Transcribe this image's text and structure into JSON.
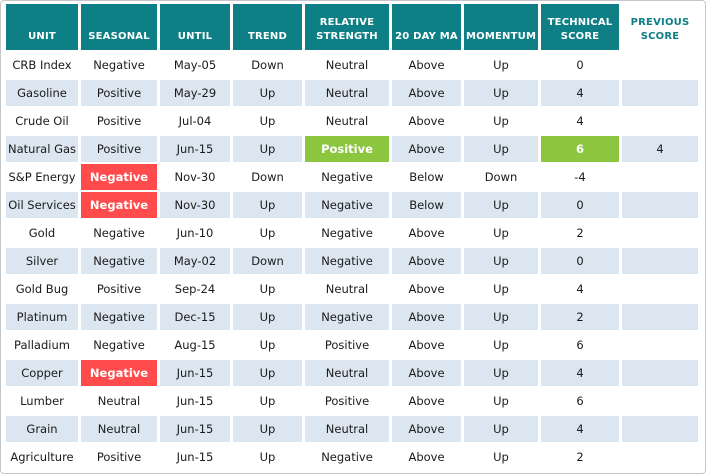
{
  "chart_data": {
    "type": "table",
    "columns": [
      {
        "key": "unit",
        "label": "UNIT"
      },
      {
        "key": "seasonal",
        "label": "SEASONAL"
      },
      {
        "key": "until",
        "label": "UNTIL"
      },
      {
        "key": "trend",
        "label": "TREND"
      },
      {
        "key": "relative-strength",
        "label": "RELATIVE STRENGTH"
      },
      {
        "key": "20-day-ma",
        "label": "20 DAY MA"
      },
      {
        "key": "momentum",
        "label": "MOMENTUM"
      },
      {
        "key": "technical-score",
        "label": "TECHNICAL SCORE"
      },
      {
        "key": "previous-score",
        "label": "PREVIOUS SCORE"
      }
    ],
    "rows": [
      {
        "cells": [
          {
            "t": "CRB Index"
          },
          {
            "t": "Negative"
          },
          {
            "t": "May-05"
          },
          {
            "t": "Down"
          },
          {
            "t": "Neutral"
          },
          {
            "t": "Above"
          },
          {
            "t": "Up"
          },
          {
            "t": "0"
          },
          {
            "t": ""
          }
        ]
      },
      {
        "cells": [
          {
            "t": "Gasoline"
          },
          {
            "t": "Positive"
          },
          {
            "t": "May-29"
          },
          {
            "t": "Up"
          },
          {
            "t": "Neutral"
          },
          {
            "t": "Above"
          },
          {
            "t": "Up"
          },
          {
            "t": "4"
          },
          {
            "t": ""
          }
        ]
      },
      {
        "cells": [
          {
            "t": "Crude Oil"
          },
          {
            "t": "Positive"
          },
          {
            "t": "Jul-04"
          },
          {
            "t": "Up"
          },
          {
            "t": "Neutral"
          },
          {
            "t": "Above"
          },
          {
            "t": "Up"
          },
          {
            "t": "4"
          },
          {
            "t": ""
          }
        ]
      },
      {
        "cells": [
          {
            "t": "Natural Gas"
          },
          {
            "t": "Positive"
          },
          {
            "t": "Jun-15"
          },
          {
            "t": "Up"
          },
          {
            "t": "Positive",
            "hl": "green"
          },
          {
            "t": "Above"
          },
          {
            "t": "Up"
          },
          {
            "t": "6",
            "hl": "green"
          },
          {
            "t": "4"
          }
        ]
      },
      {
        "cells": [
          {
            "t": "S&P Energy"
          },
          {
            "t": "Negative",
            "hl": "red"
          },
          {
            "t": "Nov-30"
          },
          {
            "t": "Down"
          },
          {
            "t": "Negative"
          },
          {
            "t": "Below"
          },
          {
            "t": "Down"
          },
          {
            "t": "-4"
          },
          {
            "t": ""
          }
        ]
      },
      {
        "cells": [
          {
            "t": "Oil Services"
          },
          {
            "t": "Negative",
            "hl": "red"
          },
          {
            "t": "Nov-30"
          },
          {
            "t": "Up"
          },
          {
            "t": "Negative"
          },
          {
            "t": "Below"
          },
          {
            "t": "Up"
          },
          {
            "t": "0"
          },
          {
            "t": ""
          }
        ]
      },
      {
        "cells": [
          {
            "t": "Gold"
          },
          {
            "t": "Negative"
          },
          {
            "t": "Jun-10"
          },
          {
            "t": "Up"
          },
          {
            "t": "Negative"
          },
          {
            "t": "Above"
          },
          {
            "t": "Up"
          },
          {
            "t": "2"
          },
          {
            "t": ""
          }
        ]
      },
      {
        "cells": [
          {
            "t": "Silver"
          },
          {
            "t": "Negative"
          },
          {
            "t": "May-02"
          },
          {
            "t": "Down"
          },
          {
            "t": "Negative"
          },
          {
            "t": "Above"
          },
          {
            "t": "Up"
          },
          {
            "t": "0"
          },
          {
            "t": ""
          }
        ]
      },
      {
        "cells": [
          {
            "t": "Gold Bug"
          },
          {
            "t": "Positive"
          },
          {
            "t": "Sep-24"
          },
          {
            "t": "Up"
          },
          {
            "t": "Neutral"
          },
          {
            "t": "Above"
          },
          {
            "t": "Up"
          },
          {
            "t": "4"
          },
          {
            "t": ""
          }
        ]
      },
      {
        "cells": [
          {
            "t": "Platinum"
          },
          {
            "t": "Negative"
          },
          {
            "t": "Dec-15"
          },
          {
            "t": "Up"
          },
          {
            "t": "Negative"
          },
          {
            "t": "Above"
          },
          {
            "t": "Up"
          },
          {
            "t": "2"
          },
          {
            "t": ""
          }
        ]
      },
      {
        "cells": [
          {
            "t": "Palladium"
          },
          {
            "t": "Negative"
          },
          {
            "t": "Aug-15"
          },
          {
            "t": "Up"
          },
          {
            "t": "Positive"
          },
          {
            "t": "Above"
          },
          {
            "t": "Up"
          },
          {
            "t": "6"
          },
          {
            "t": ""
          }
        ]
      },
      {
        "cells": [
          {
            "t": "Copper"
          },
          {
            "t": "Negative",
            "hl": "red"
          },
          {
            "t": "Jun-15"
          },
          {
            "t": "Up"
          },
          {
            "t": "Neutral"
          },
          {
            "t": "Above"
          },
          {
            "t": "Up"
          },
          {
            "t": "4"
          },
          {
            "t": ""
          }
        ]
      },
      {
        "cells": [
          {
            "t": "Lumber"
          },
          {
            "t": "Neutral"
          },
          {
            "t": "Jun-15"
          },
          {
            "t": "Up"
          },
          {
            "t": "Positive"
          },
          {
            "t": "Above"
          },
          {
            "t": "Up"
          },
          {
            "t": "6"
          },
          {
            "t": ""
          }
        ]
      },
      {
        "cells": [
          {
            "t": "Grain"
          },
          {
            "t": "Neutral"
          },
          {
            "t": "Jun-15"
          },
          {
            "t": "Up"
          },
          {
            "t": "Neutral"
          },
          {
            "t": "Above"
          },
          {
            "t": "Up"
          },
          {
            "t": "4"
          },
          {
            "t": ""
          }
        ]
      },
      {
        "cells": [
          {
            "t": "Agriculture"
          },
          {
            "t": "Positive"
          },
          {
            "t": "Jun-15"
          },
          {
            "t": "Up"
          },
          {
            "t": "Negative"
          },
          {
            "t": "Above"
          },
          {
            "t": "Up"
          },
          {
            "t": "2"
          },
          {
            "t": ""
          }
        ]
      }
    ]
  },
  "colors": {
    "header_teal": "#0E7F85",
    "header_text": "#FFFFFF",
    "row_alt": "#DCE6F1",
    "red": "#FF4B4B",
    "green": "#8CC63E",
    "body_text": "#1A1A1A"
  }
}
